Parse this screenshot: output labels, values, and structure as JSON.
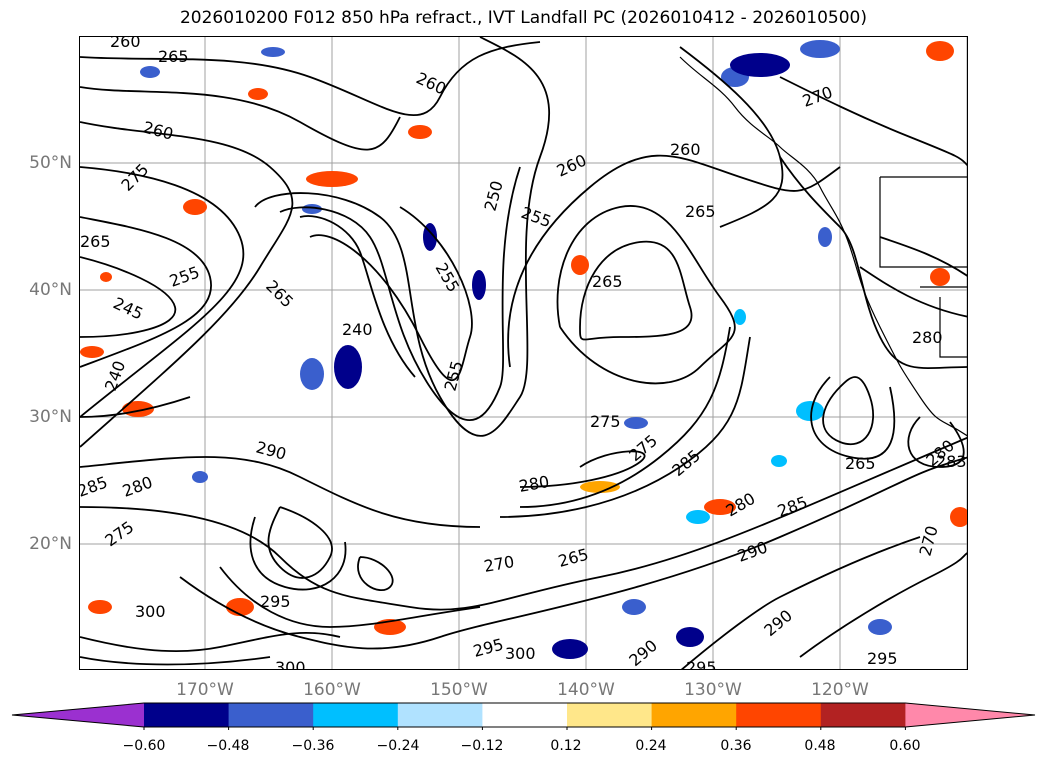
{
  "title": "2026010200 F012 850 hPa refract., IVT Landfall PC (2026010412 - 2026010500)",
  "lat_labels": [
    "50°N",
    "40°N",
    "30°N",
    "20°N"
  ],
  "lon_labels": [
    "170°W",
    "160°W",
    "150°W",
    "140°W",
    "130°W",
    "120°W"
  ],
  "contour_labels": [
    "260",
    "265",
    "260",
    "260",
    "275",
    "265",
    "245",
    "255",
    "240",
    "240",
    "265",
    "255",
    "250",
    "255",
    "260",
    "265",
    "255",
    "270",
    "260",
    "265",
    "275",
    "280",
    "290",
    "285",
    "280",
    "275",
    "270",
    "265",
    "275",
    "285",
    "280",
    "285",
    "290",
    "295",
    "300",
    "300",
    "295",
    "300",
    "295",
    "290",
    "290",
    "295",
    "270",
    "280",
    "265",
    "280",
    "283"
  ],
  "colorbar": {
    "ticks": [
      "−0.60",
      "−0.48",
      "−0.36",
      "−0.24",
      "−0.12",
      "0.12",
      "0.24",
      "0.36",
      "0.48",
      "0.60"
    ],
    "colors": [
      "#9b30d0",
      "#00008b",
      "#3a5fcd",
      "#00bfff",
      "#b0e2ff",
      "#ffffff",
      "#ffe78a",
      "#ffa500",
      "#ff4500",
      "#b22222",
      "#ff88aa"
    ]
  },
  "map": {
    "background": "#ffffff",
    "contour_color": "#000000",
    "grid_color": "#a0a0a0"
  }
}
